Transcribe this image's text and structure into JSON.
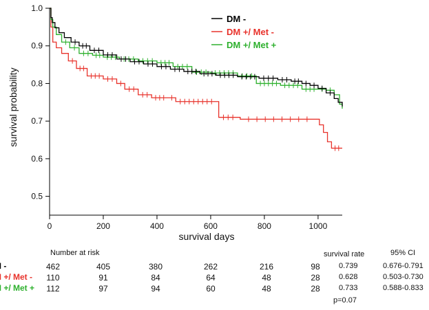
{
  "chart_data": {
    "type": "line",
    "title": "",
    "xlabel": "survival days",
    "ylabel": "survival probability",
    "xlim": [
      0,
      1090
    ],
    "ylim": [
      0.45,
      1.0
    ],
    "x_ticks": [
      0,
      200,
      400,
      600,
      800,
      1000
    ],
    "y_ticks": [
      "0.5",
      "0.6",
      "0.7",
      "0.8",
      "0.9",
      "1.0"
    ],
    "grid": false,
    "legend_position": "top-right",
    "series": [
      {
        "name": "DM -",
        "color": "#000000",
        "points": [
          [
            0,
            1.0
          ],
          [
            5,
            0.975
          ],
          [
            10,
            0.962
          ],
          [
            20,
            0.948
          ],
          [
            35,
            0.935
          ],
          [
            55,
            0.922
          ],
          [
            80,
            0.91
          ],
          [
            110,
            0.9
          ],
          [
            150,
            0.888
          ],
          [
            200,
            0.876
          ],
          [
            250,
            0.865
          ],
          [
            300,
            0.858
          ],
          [
            350,
            0.852
          ],
          [
            400,
            0.845
          ],
          [
            450,
            0.838
          ],
          [
            500,
            0.832
          ],
          [
            560,
            0.826
          ],
          [
            620,
            0.822
          ],
          [
            700,
            0.818
          ],
          [
            780,
            0.814
          ],
          [
            850,
            0.81
          ],
          [
            900,
            0.806
          ],
          [
            940,
            0.8
          ],
          [
            970,
            0.795
          ],
          [
            1000,
            0.787
          ],
          [
            1030,
            0.775
          ],
          [
            1060,
            0.76
          ],
          [
            1075,
            0.75
          ],
          [
            1090,
            0.739
          ]
        ]
      },
      {
        "name": "DM +/ Met -",
        "color": "#e8322b",
        "points": [
          [
            0,
            1.0
          ],
          [
            5,
            0.95
          ],
          [
            12,
            0.91
          ],
          [
            25,
            0.895
          ],
          [
            45,
            0.88
          ],
          [
            70,
            0.86
          ],
          [
            100,
            0.84
          ],
          [
            140,
            0.82
          ],
          [
            200,
            0.812
          ],
          [
            250,
            0.8
          ],
          [
            280,
            0.785
          ],
          [
            330,
            0.77
          ],
          [
            380,
            0.762
          ],
          [
            440,
            0.762
          ],
          [
            470,
            0.752
          ],
          [
            620,
            0.752
          ],
          [
            630,
            0.71
          ],
          [
            700,
            0.71
          ],
          [
            710,
            0.705
          ],
          [
            990,
            0.705
          ],
          [
            1005,
            0.69
          ],
          [
            1020,
            0.67
          ],
          [
            1035,
            0.645
          ],
          [
            1050,
            0.628
          ],
          [
            1090,
            0.628
          ]
        ]
      },
      {
        "name": "DM +/ Met +",
        "color": "#2db02d",
        "points": [
          [
            0,
            1.0
          ],
          [
            5,
            0.97
          ],
          [
            12,
            0.95
          ],
          [
            25,
            0.93
          ],
          [
            45,
            0.91
          ],
          [
            75,
            0.895
          ],
          [
            110,
            0.88
          ],
          [
            160,
            0.875
          ],
          [
            200,
            0.87
          ],
          [
            260,
            0.865
          ],
          [
            330,
            0.86
          ],
          [
            400,
            0.855
          ],
          [
            460,
            0.845
          ],
          [
            530,
            0.83
          ],
          [
            600,
            0.828
          ],
          [
            700,
            0.82
          ],
          [
            770,
            0.8
          ],
          [
            860,
            0.795
          ],
          [
            940,
            0.785
          ],
          [
            1000,
            0.785
          ],
          [
            1030,
            0.782
          ],
          [
            1060,
            0.77
          ],
          [
            1080,
            0.745
          ],
          [
            1090,
            0.733
          ]
        ]
      }
    ]
  },
  "risk_table": {
    "header": "Number at risk",
    "rows": [
      {
        "label": "M -",
        "color": "#000000",
        "values": [
          "462",
          "405",
          "380",
          "262",
          "216",
          "98"
        ]
      },
      {
        "label": "M +/ Met -",
        "color": "#e8322b",
        "values": [
          "110",
          "91",
          "84",
          "64",
          "48",
          "28"
        ]
      },
      {
        "label": "M +/ Met +",
        "color": "#2db02d",
        "values": [
          "112",
          "97",
          "94",
          "60",
          "48",
          "28"
        ]
      }
    ]
  },
  "stats": {
    "survival_rate_header": "survival rate",
    "ci_header": "95% CI",
    "rows": [
      {
        "rate": "0.739",
        "ci": "0.676-0.791"
      },
      {
        "rate": "0.628",
        "ci": "0.503-0.730"
      },
      {
        "rate": "0.733",
        "ci": "0.588-0.833"
      }
    ],
    "p_value": "p=0.07"
  }
}
